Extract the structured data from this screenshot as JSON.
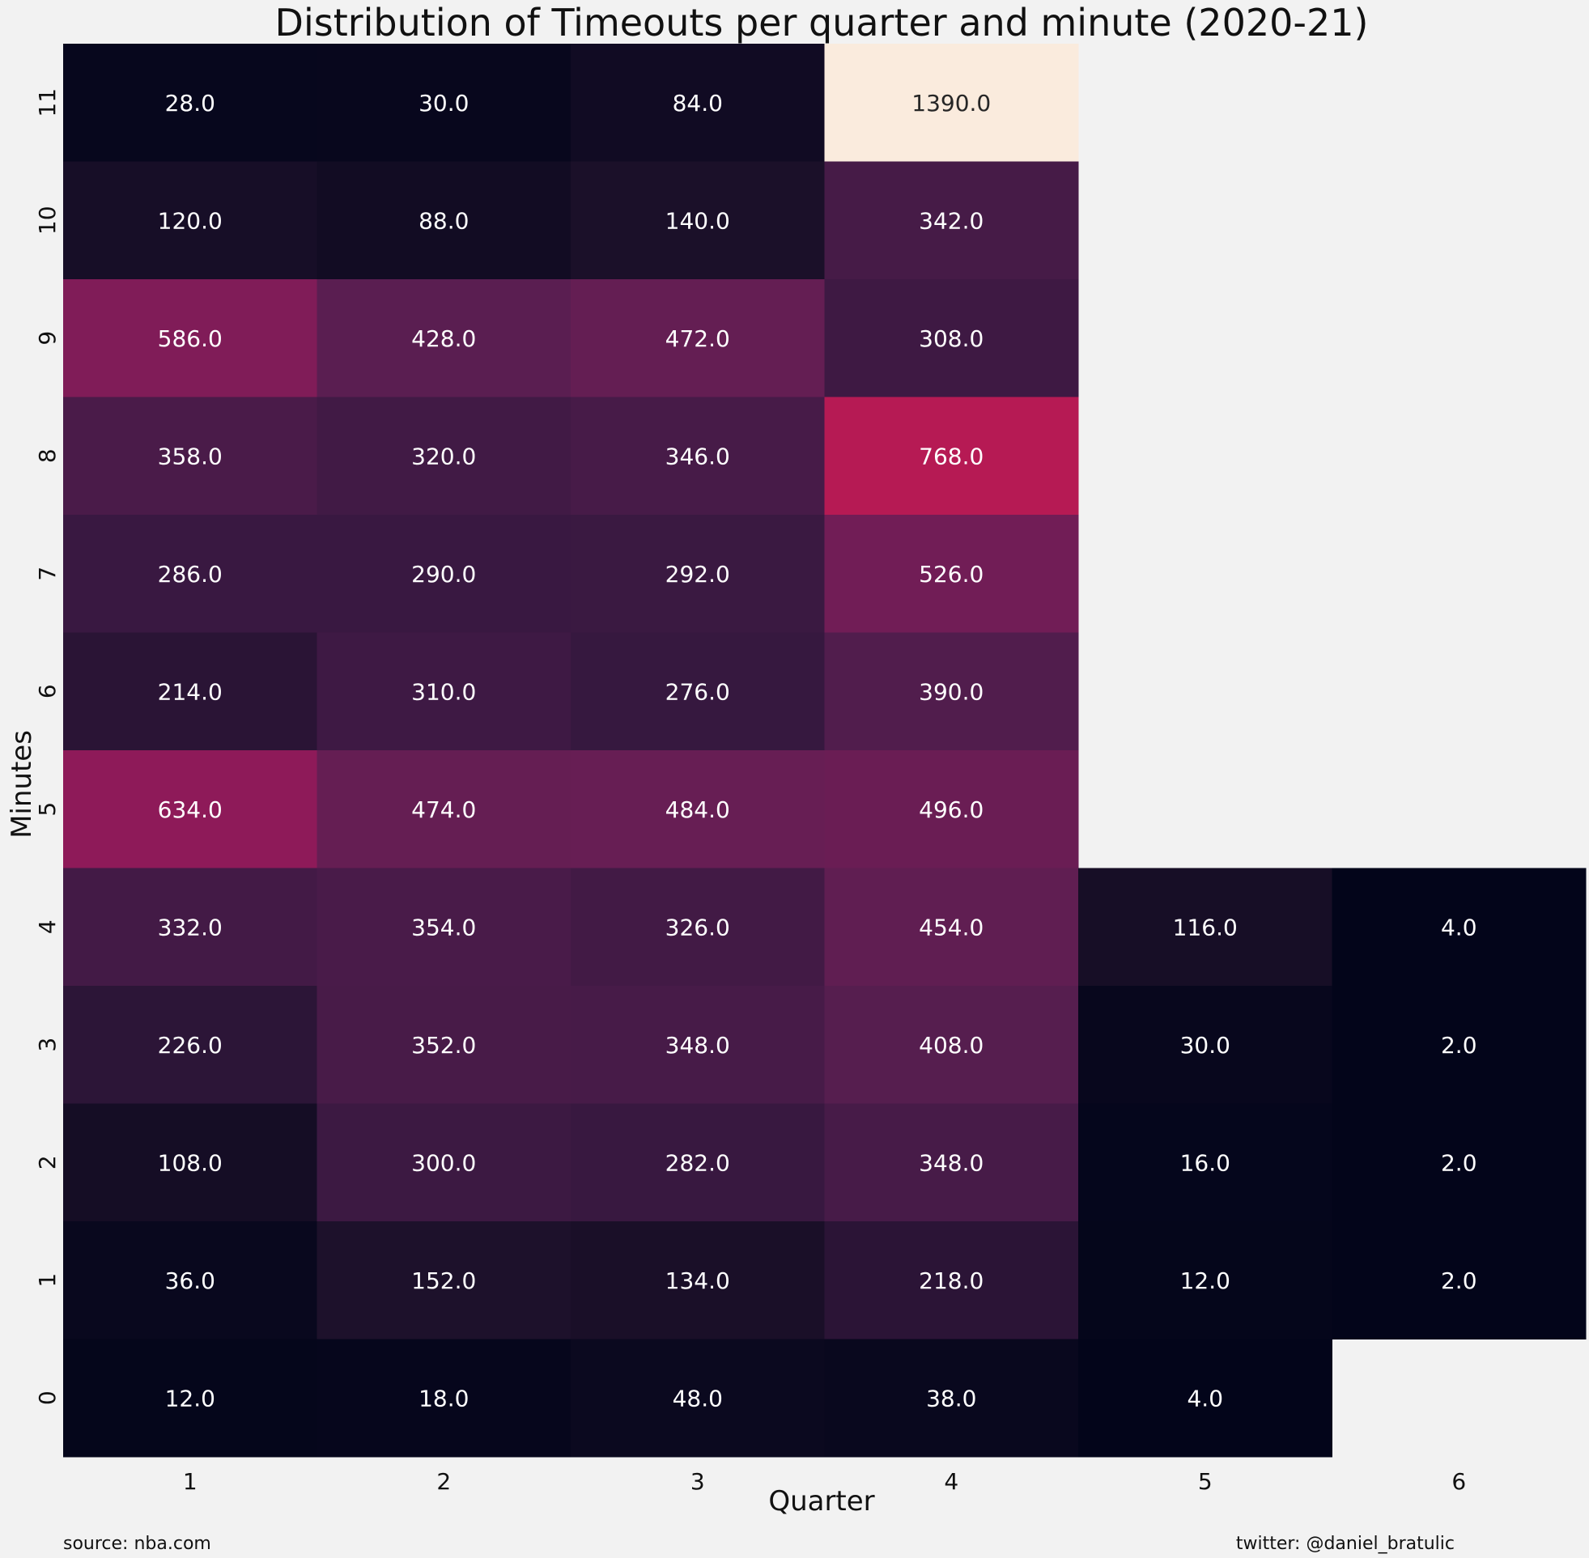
{
  "chart_data": {
    "type": "heatmap",
    "title": "Distribution of Timeouts per quarter and minute (2020-21)",
    "xlabel": "Quarter",
    "ylabel": "Minutes",
    "x_categories": [
      "1",
      "2",
      "3",
      "4",
      "5",
      "6"
    ],
    "y_categories": [
      "11",
      "10",
      "9",
      "8",
      "7",
      "6",
      "5",
      "4",
      "3",
      "2",
      "1",
      "0"
    ],
    "values": [
      [
        28,
        30,
        84,
        1390,
        null,
        null
      ],
      [
        120,
        88,
        140,
        342,
        null,
        null
      ],
      [
        586,
        428,
        472,
        308,
        null,
        null
      ],
      [
        358,
        320,
        346,
        768,
        null,
        null
      ],
      [
        286,
        290,
        292,
        526,
        null,
        null
      ],
      [
        214,
        310,
        276,
        390,
        null,
        null
      ],
      [
        634,
        474,
        484,
        496,
        null,
        null
      ],
      [
        332,
        354,
        326,
        454,
        116,
        4
      ],
      [
        226,
        352,
        348,
        408,
        30,
        2
      ],
      [
        108,
        300,
        282,
        348,
        16,
        2
      ],
      [
        36,
        152,
        134,
        218,
        12,
        2
      ],
      [
        12,
        18,
        48,
        38,
        4,
        null
      ]
    ],
    "value_format": "one decimal",
    "colormap": "rocket",
    "vmin": 2,
    "vmax": 1390,
    "grid": false,
    "legend": "none"
  },
  "footer": {
    "source": "source: nba.com",
    "credit": "twitter: @daniel_bratulic"
  }
}
